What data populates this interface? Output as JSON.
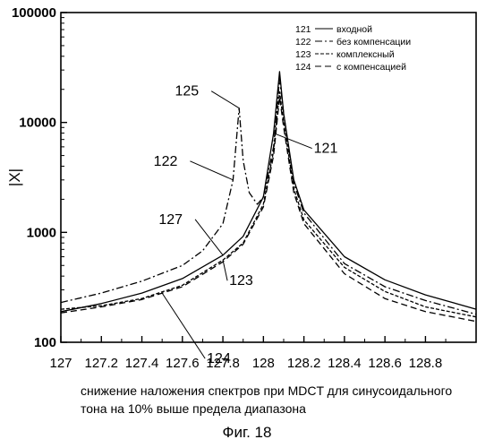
{
  "chart_data": {
    "type": "line",
    "xlabel": "",
    "ylabel": "|X|",
    "x_scale": "linear",
    "y_scale": "log",
    "xlim": [
      127,
      129.05
    ],
    "ylim": [
      100,
      100000
    ],
    "x_ticks": [
      127,
      127.2,
      127.4,
      127.6,
      127.8,
      128,
      128.2,
      128.4,
      128.6,
      128.8
    ],
    "x_tick_labels": [
      "127",
      "127.2",
      "127.4",
      "127.6",
      "127.8",
      "128",
      "128.2",
      "128.4",
      "128.6",
      "128.8"
    ],
    "y_ticks": [
      100,
      1000,
      10000,
      100000
    ],
    "y_tick_labels": [
      "100",
      "1000",
      "10000",
      "100000"
    ],
    "grid": false,
    "legend_placement": "top-right",
    "legend": [
      {
        "id": "121",
        "label": "входной",
        "style": "solid"
      },
      {
        "id": "122",
        "label": "без компенсации",
        "style": "dashdot"
      },
      {
        "id": "123",
        "label": "комплексный",
        "style": "dense-dash"
      },
      {
        "id": "124",
        "label": "с компенсацией",
        "style": "dashed"
      }
    ],
    "series": [
      {
        "id": "121",
        "name": "входной",
        "style": "solid",
        "x": [
          127,
          127.2,
          127.4,
          127.6,
          127.8,
          127.9,
          128,
          128.05,
          128.08,
          128.1,
          128.15,
          128.2,
          128.4,
          128.6,
          128.8,
          129.05
        ],
        "y": [
          190,
          225,
          280,
          380,
          620,
          920,
          2100,
          8000,
          29000,
          12000,
          3000,
          1600,
          600,
          370,
          270,
          200
        ]
      },
      {
        "id": "122",
        "name": "без компенсации",
        "style": "dashdot",
        "x": [
          127,
          127.2,
          127.4,
          127.6,
          127.7,
          127.8,
          127.85,
          127.88,
          127.9,
          127.93,
          127.97,
          128,
          128.05,
          128.08,
          128.1,
          128.15,
          128.2,
          128.4,
          128.6,
          128.8,
          129.05
        ],
        "y": [
          230,
          280,
          360,
          500,
          680,
          1200,
          3000,
          13500,
          4500,
          2300,
          1800,
          2100,
          6000,
          25000,
          12000,
          2800,
          1500,
          520,
          320,
          240,
          180
        ]
      },
      {
        "id": "123",
        "name": "комплексный",
        "style": "dense-dash",
        "x": [
          127,
          127.2,
          127.4,
          127.6,
          127.8,
          127.9,
          128,
          128.05,
          128.08,
          128.1,
          128.15,
          128.2,
          128.4,
          128.6,
          128.8,
          129.05
        ],
        "y": [
          200,
          215,
          250,
          330,
          560,
          800,
          1800,
          5500,
          19000,
          10000,
          2500,
          1300,
          480,
          290,
          210,
          170
        ]
      },
      {
        "id": "124",
        "name": "с компенсацией",
        "style": "dashed",
        "x": [
          127,
          127.2,
          127.4,
          127.6,
          127.8,
          127.9,
          128,
          128.05,
          128.08,
          128.1,
          128.15,
          128.2,
          128.4,
          128.6,
          128.8,
          129.05
        ],
        "y": [
          185,
          210,
          245,
          320,
          540,
          780,
          1700,
          5000,
          17000,
          9000,
          2300,
          1200,
          420,
          250,
          190,
          155
        ]
      }
    ],
    "annotations": [
      {
        "text": "125",
        "target": "122",
        "x": 127.88,
        "y": 13500
      },
      {
        "text": "122",
        "target": "122",
        "x": 127.85,
        "y": 3000
      },
      {
        "text": "121",
        "target": "121",
        "x": 128.05,
        "y": 8000
      },
      {
        "text": "127",
        "target": "121",
        "x": 127.8,
        "y": 620
      },
      {
        "text": "123",
        "target": "123",
        "x": 127.8,
        "y": 560
      },
      {
        "text": "124",
        "target": "124",
        "x": 127.5,
        "y": 280
      }
    ]
  },
  "caption": {
    "line1": "снижение наложения спектров при MDCT для синусоидального",
    "line2": "тона на 10% выше предела диапазона"
  },
  "figure_label": "Фиг. 18"
}
